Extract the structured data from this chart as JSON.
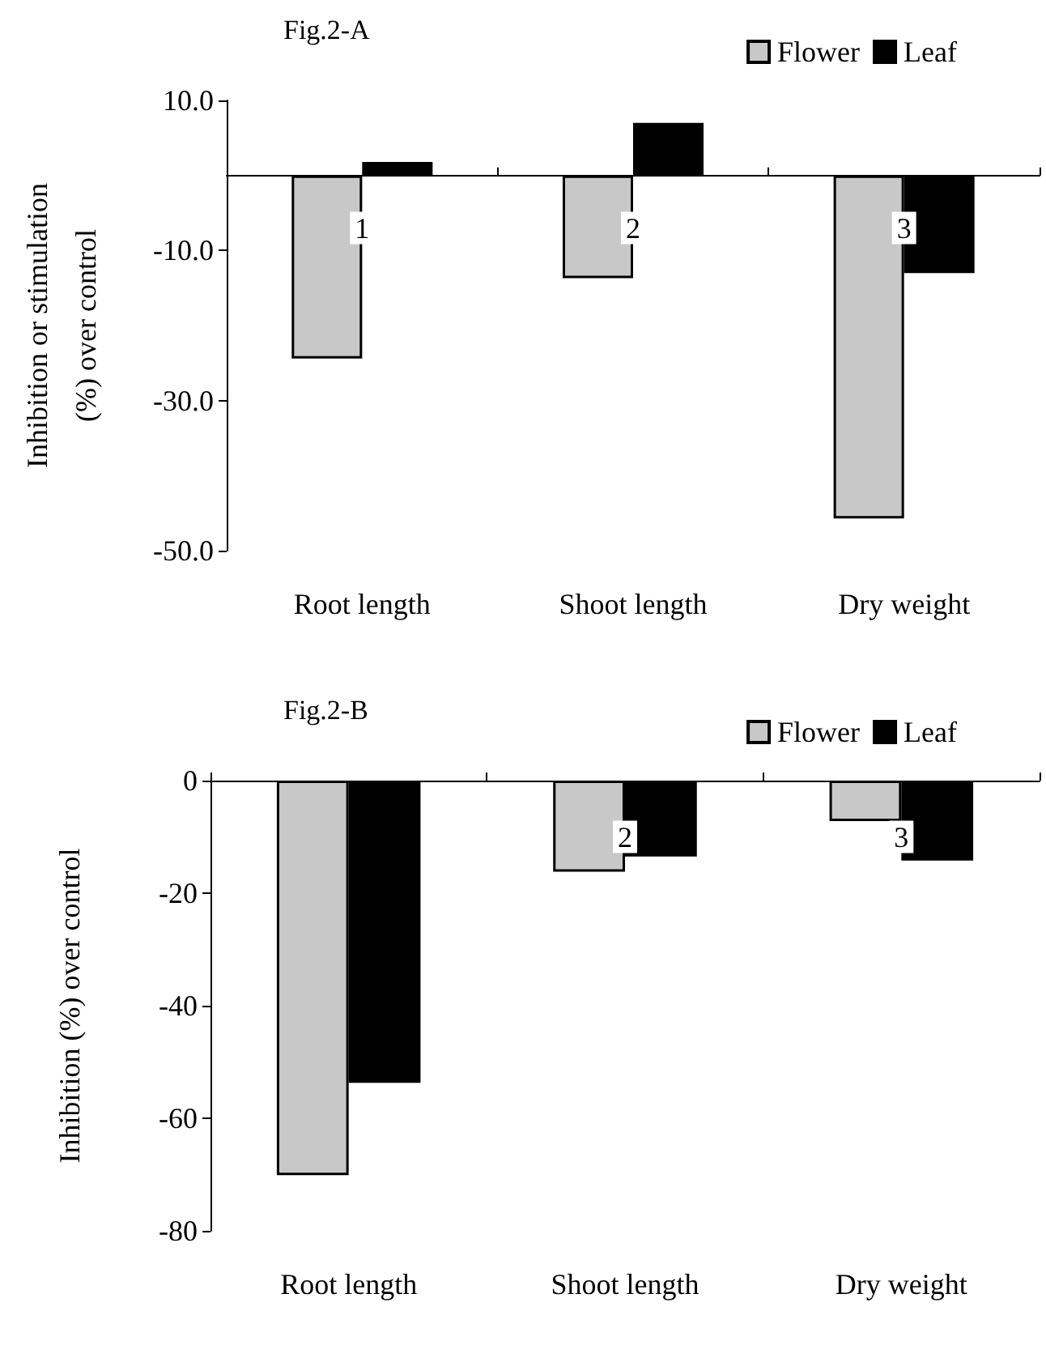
{
  "chart_data": [
    {
      "type": "bar",
      "title": "Fig.2-A",
      "ylabel": "Inhibition or stimulation\n(%) over control",
      "categories": [
        "Root length",
        "Shoot length",
        "Dry weight"
      ],
      "series": [
        {
          "name": "Flower",
          "color": "#c8c8c8",
          "values": [
            -24.4,
            -13.7,
            -45.7
          ]
        },
        {
          "name": "Leaf",
          "color": "#000000",
          "values": [
            1.8,
            7.0,
            -13.0
          ]
        }
      ],
      "ylim": [
        -50,
        10
      ],
      "yticks": [
        {
          "value": -50,
          "label": "-50.0"
        },
        {
          "value": -30,
          "label": "-30.0"
        },
        {
          "value": -10,
          "label": "-10.0"
        },
        {
          "value": 10,
          "label": "10.0"
        }
      ],
      "annotations": [
        {
          "text": "1",
          "x": "Root length",
          "y": -7
        },
        {
          "text": "2",
          "x": "Shoot length",
          "y": -7
        },
        {
          "text": "3",
          "x": "Dry weight",
          "y": -7
        }
      ],
      "legend": "top right",
      "grid": false
    },
    {
      "type": "bar",
      "title": "Fig.2-B",
      "ylabel": "Inhibition (%) over control",
      "categories": [
        "Root length",
        "Shoot length",
        "Dry weight"
      ],
      "series": [
        {
          "name": "Flower",
          "color": "#c8c8c8",
          "values": [
            -70.1,
            -16.2,
            -7.2
          ]
        },
        {
          "name": "Leaf",
          "color": "#000000",
          "values": [
            -53.7,
            -13.5,
            -14.2
          ]
        }
      ],
      "ylim": [
        -80,
        0
      ],
      "yticks": [
        -80,
        -60,
        -40,
        -20,
        0
      ],
      "annotations": [
        {
          "text": "2",
          "x": "Shoot length",
          "y": -10
        },
        {
          "text": "3",
          "x": "Dry weight",
          "y": -10
        }
      ],
      "legend": "top right",
      "grid": false
    }
  ]
}
